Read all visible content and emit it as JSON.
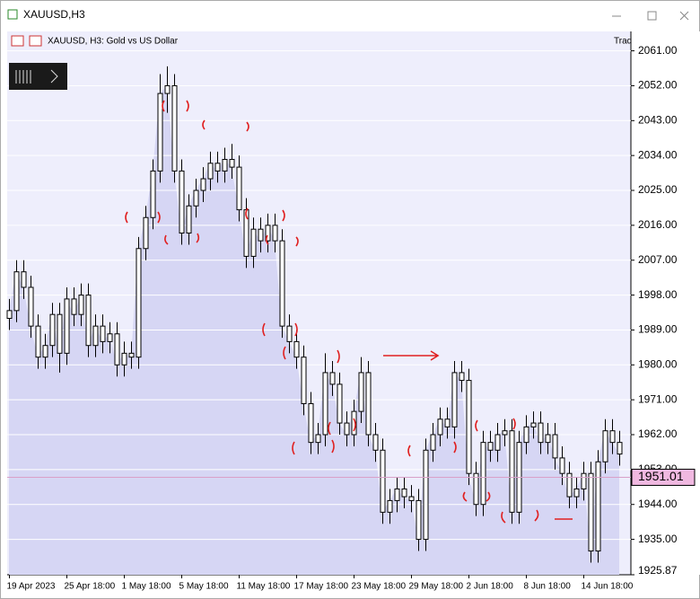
{
  "window_title": "XAUUSD,H3",
  "chart_data": {
    "type": "candlestick",
    "title": "XAUUSD, H3:  Gold vs US Dollar",
    "corner_text": "Trad",
    "categories": [
      "19 Apr 2023",
      null,
      null,
      null,
      null,
      null,
      null,
      null,
      "25 Apr 18:00",
      null,
      null,
      null,
      null,
      null,
      null,
      null,
      "1 May 18:00",
      null,
      null,
      null,
      null,
      null,
      null,
      null,
      "5 May 18:00",
      null,
      null,
      null,
      null,
      null,
      null,
      null,
      "11 May 18:00",
      null,
      null,
      null,
      null,
      null,
      null,
      null,
      "17 May 18:00",
      null,
      null,
      null,
      null,
      null,
      null,
      null,
      "23 May 18:00",
      null,
      null,
      null,
      null,
      null,
      null,
      null,
      "29 May 18:00",
      null,
      null,
      null,
      null,
      null,
      null,
      null,
      "2 Jun 18:00",
      null,
      null,
      null,
      null,
      null,
      null,
      null,
      "8 Jun 18:00",
      null,
      null,
      null,
      null,
      null,
      null,
      null,
      "14 Jun 18:00",
      null,
      null,
      null,
      null,
      null
    ],
    "open": [
      1992,
      1994,
      2004,
      2000,
      1990,
      1982,
      1985,
      1993,
      1983,
      1997,
      1993,
      1998,
      1985,
      1990,
      1986,
      1988,
      1980,
      1983,
      1982,
      2010,
      2018,
      2030,
      2050,
      2052,
      2030,
      2014,
      2021,
      2025,
      2028,
      2032,
      2030,
      2033,
      2031,
      2020,
      2008,
      2015,
      2012,
      2016,
      2012,
      1990,
      1986,
      1982,
      1970,
      1960,
      1962,
      1978,
      1975,
      1965,
      1962,
      1968,
      1978,
      1962,
      1958,
      1942,
      1945,
      1948,
      1946,
      1945,
      1935,
      1958,
      1962,
      1966,
      1964,
      1978,
      1976,
      1952,
      1944,
      1960,
      1958,
      1962,
      1963,
      1942,
      1960,
      1964,
      1965,
      1960,
      1962,
      1956,
      1952,
      1946,
      1948,
      1952,
      1932,
      1955,
      1963,
      1960
    ],
    "high": [
      1997,
      2007,
      2007,
      2003,
      1993,
      1988,
      1996,
      1996,
      2000,
      2000,
      2001,
      2001,
      1993,
      1993,
      1991,
      1991,
      1986,
      1986,
      2013,
      2021,
      2033,
      2055,
      2057,
      2055,
      2033,
      2024,
      2028,
      2031,
      2035,
      2035,
      2036,
      2037,
      2034,
      2023,
      2018,
      2018,
      2019,
      2019,
      2015,
      1993,
      1989,
      1985,
      1973,
      1965,
      1983,
      1981,
      1978,
      1968,
      1971,
      1982,
      1981,
      1965,
      1961,
      1948,
      1951,
      1951,
      1949,
      1948,
      1961,
      1965,
      1969,
      1969,
      1981,
      1981,
      1979,
      1955,
      1963,
      1963,
      1965,
      1966,
      1966,
      1963,
      1967,
      1968,
      1968,
      1965,
      1965,
      1959,
      1955,
      1951,
      1955,
      1955,
      1958,
      1966,
      1966,
      1963
    ],
    "low": [
      1989,
      1991,
      1997,
      1987,
      1979,
      1979,
      1982,
      1978,
      1980,
      1990,
      1990,
      1982,
      1982,
      1983,
      1983,
      1977,
      1977,
      1979,
      1979,
      2007,
      2015,
      2027,
      2045,
      2027,
      2011,
      2011,
      2018,
      2022,
      2025,
      2027,
      2027,
      2028,
      2017,
      2005,
      2005,
      2009,
      2009,
      2009,
      1987,
      1983,
      1979,
      1967,
      1957,
      1957,
      1959,
      1972,
      1962,
      1959,
      1959,
      1965,
      1959,
      1955,
      1939,
      1939,
      1942,
      1943,
      1942,
      1932,
      1932,
      1955,
      1959,
      1961,
      1961,
      1973,
      1949,
      1941,
      1941,
      1955,
      1955,
      1959,
      1939,
      1939,
      1957,
      1961,
      1957,
      1957,
      1953,
      1949,
      1943,
      1943,
      1945,
      1929,
      1929,
      1952,
      1957,
      1954
    ],
    "close": [
      1994,
      2004,
      2000,
      1990,
      1982,
      1985,
      1993,
      1983,
      1997,
      1993,
      1998,
      1985,
      1990,
      1986,
      1988,
      1980,
      1983,
      1982,
      2010,
      2018,
      2030,
      2050,
      2052,
      2030,
      2014,
      2021,
      2025,
      2028,
      2032,
      2030,
      2033,
      2031,
      2020,
      2008,
      2015,
      2012,
      2016,
      2012,
      1990,
      1986,
      1982,
      1970,
      1960,
      1962,
      1978,
      1975,
      1965,
      1962,
      1968,
      1978,
      1962,
      1958,
      1942,
      1945,
      1948,
      1946,
      1945,
      1935,
      1958,
      1962,
      1966,
      1964,
      1978,
      1976,
      1952,
      1944,
      1960,
      1958,
      1962,
      1963,
      1942,
      1960,
      1964,
      1965,
      1960,
      1962,
      1956,
      1952,
      1946,
      1948,
      1952,
      1932,
      1955,
      1963,
      1960,
      1957
    ],
    "ylim": [
      1925.87,
      2066
    ],
    "yticks": [
      {
        "value": 2061,
        "label": "2061.00"
      },
      {
        "value": 2052,
        "label": "2052.00"
      },
      {
        "value": 2043,
        "label": "2043.00"
      },
      {
        "value": 2034,
        "label": "2034.00"
      },
      {
        "value": 2025,
        "label": "2025.00"
      },
      {
        "value": 2016,
        "label": "2016.00"
      },
      {
        "value": 2007,
        "label": "2007.00"
      },
      {
        "value": 1998,
        "label": "1998.00"
      },
      {
        "value": 1989,
        "label": "1989.00"
      },
      {
        "value": 1980,
        "label": "1980.00"
      },
      {
        "value": 1971,
        "label": "1971.00"
      },
      {
        "value": 1962,
        "label": "1962.00"
      },
      {
        "value": 1953,
        "label": "1953.00"
      },
      {
        "value": 1944,
        "label": "1944.00"
      },
      {
        "value": 1935,
        "label": "1935.00"
      },
      {
        "value": 1925.87,
        "label": "1925.87"
      }
    ],
    "current_price": {
      "value": 1951.01,
      "label": "1951.01"
    },
    "grid": true,
    "body_color": "#ffffff",
    "wick_color": "#000000",
    "area_color": "#d6d6f4"
  }
}
